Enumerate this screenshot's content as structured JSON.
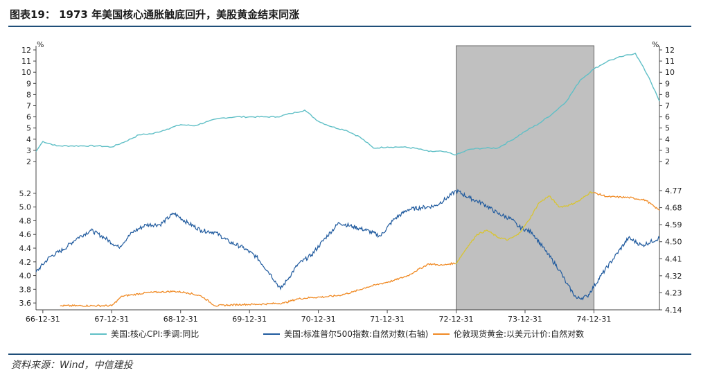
{
  "header": {
    "title": "图表19：  1973 年美国核心通胀触底回升，美股黄金结束同涨"
  },
  "footer": {
    "source": "资料来源：Wind，中信建投"
  },
  "chart_data": {
    "type": "line",
    "x_tick_labels": [
      "66-12-31",
      "67-12-31",
      "68-12-31",
      "69-12-31",
      "70-12-31",
      "71-12-31",
      "72-12-31",
      "73-12-31",
      "74-12-31"
    ],
    "shaded_period": [
      "1973-01",
      "1974-12"
    ],
    "top_panel": {
      "unit_left": "%",
      "unit_right": "%",
      "yticks": [
        2,
        3,
        4,
        5,
        6,
        7,
        8,
        9,
        10,
        11,
        12
      ],
      "ylim": [
        2,
        12
      ]
    },
    "bottom_panel": {
      "left_yticks": [
        "3.6",
        "3.8",
        "4.0",
        "4.2",
        "4.4",
        "4.6",
        "4.8",
        "5.0",
        "5.2"
      ],
      "left_ylim": [
        3.5,
        5.3
      ],
      "right_yticks": [
        "4.14",
        "4.23",
        "4.32",
        "4.41",
        "4.50",
        "4.59",
        "4.68",
        "4.77"
      ],
      "right_ylim": [
        4.14,
        4.77
      ]
    },
    "series": [
      {
        "name": "美国:核心CPI:季调:同比",
        "panel": "top",
        "color": "#5fbfc6",
        "x": [
          1966.9,
          1967.0,
          1967.2,
          1967.4,
          1967.6,
          1967.8,
          1968.0,
          1968.2,
          1968.4,
          1968.6,
          1968.8,
          1969.0,
          1969.2,
          1969.4,
          1969.6,
          1969.8,
          1970.0,
          1970.2,
          1970.4,
          1970.6,
          1970.8,
          1971.0,
          1971.2,
          1971.4,
          1971.6,
          1971.8,
          1972.0,
          1972.2,
          1972.4,
          1972.6,
          1972.8,
          1973.0,
          1973.2,
          1973.4,
          1973.6,
          1973.8,
          1974.0,
          1974.2,
          1974.4,
          1974.6,
          1974.8,
          1975.0,
          1975.2,
          1975.4,
          1975.6,
          1975.8,
          1975.95
        ],
        "values": [
          2.9,
          3.8,
          3.4,
          3.4,
          3.4,
          3.4,
          3.3,
          3.8,
          4.4,
          4.5,
          4.9,
          5.3,
          5.2,
          5.6,
          5.9,
          6.0,
          6.0,
          6.0,
          6.0,
          6.3,
          6.6,
          5.6,
          5.1,
          4.8,
          4.2,
          3.2,
          3.3,
          3.3,
          3.2,
          2.9,
          2.9,
          2.6,
          3.1,
          3.2,
          3.2,
          3.9,
          4.7,
          5.4,
          6.3,
          7.4,
          9.3,
          10.3,
          11.0,
          11.4,
          11.7,
          9.5,
          7.4
        ]
      },
      {
        "name": "美国:标准普尔500指数:自然对数(右轴)",
        "panel": "bottom",
        "axis": "right",
        "color": "#1f5a9e",
        "x": [
          1966.9,
          1967.1,
          1967.3,
          1967.5,
          1967.7,
          1967.9,
          1968.1,
          1968.3,
          1968.5,
          1968.7,
          1968.9,
          1969.1,
          1969.3,
          1969.5,
          1969.7,
          1969.9,
          1970.1,
          1970.3,
          1970.45,
          1970.55,
          1970.7,
          1970.9,
          1971.1,
          1971.3,
          1971.5,
          1971.7,
          1971.9,
          1972.1,
          1972.3,
          1972.5,
          1972.7,
          1972.9,
          1973.0,
          1973.2,
          1973.4,
          1973.6,
          1973.8,
          1973.9,
          1974.1,
          1974.3,
          1974.5,
          1974.6,
          1974.75,
          1974.9,
          1975.1,
          1975.3,
          1975.5,
          1975.7,
          1975.95
        ],
        "values": [
          4.34,
          4.42,
          4.46,
          4.52,
          4.56,
          4.52,
          4.47,
          4.55,
          4.59,
          4.59,
          4.65,
          4.6,
          4.56,
          4.55,
          4.5,
          4.47,
          4.42,
          4.33,
          4.25,
          4.3,
          4.38,
          4.43,
          4.52,
          4.6,
          4.58,
          4.56,
          4.53,
          4.62,
          4.67,
          4.68,
          4.69,
          4.74,
          4.77,
          4.73,
          4.7,
          4.65,
          4.62,
          4.58,
          4.55,
          4.45,
          4.35,
          4.28,
          4.2,
          4.21,
          4.32,
          4.42,
          4.52,
          4.48,
          4.52
        ]
      },
      {
        "name": "伦敦现货黄金:以美元计价:自然对数",
        "panel": "bottom",
        "axis": "left",
        "color": "#f08a24",
        "highlight_color": "#d8c431",
        "x": [
          1967.25,
          1967.5,
          1967.75,
          1968.0,
          1968.15,
          1968.3,
          1968.5,
          1968.7,
          1968.9,
          1969.1,
          1969.3,
          1969.5,
          1969.7,
          1969.9,
          1970.1,
          1970.3,
          1970.5,
          1970.7,
          1970.9,
          1971.1,
          1971.3,
          1971.5,
          1971.7,
          1971.9,
          1972.1,
          1972.3,
          1972.4,
          1972.6,
          1972.8,
          1972.9,
          1973.0,
          1973.15,
          1973.3,
          1973.45,
          1973.6,
          1973.75,
          1973.9,
          1974.05,
          1974.2,
          1974.35,
          1974.5,
          1974.65,
          1974.8,
          1974.95,
          1975.2,
          1975.5,
          1975.75,
          1975.95
        ],
        "values": [
          3.56,
          3.56,
          3.56,
          3.56,
          3.7,
          3.72,
          3.75,
          3.76,
          3.77,
          3.75,
          3.7,
          3.56,
          3.57,
          3.58,
          3.58,
          3.59,
          3.6,
          3.66,
          3.68,
          3.69,
          3.71,
          3.76,
          3.83,
          3.88,
          3.93,
          4.0,
          4.06,
          4.17,
          4.15,
          4.17,
          4.18,
          4.4,
          4.6,
          4.66,
          4.56,
          4.52,
          4.6,
          4.8,
          5.06,
          5.16,
          5.0,
          5.03,
          5.1,
          5.22,
          5.15,
          5.14,
          5.1,
          4.95
        ]
      }
    ]
  }
}
